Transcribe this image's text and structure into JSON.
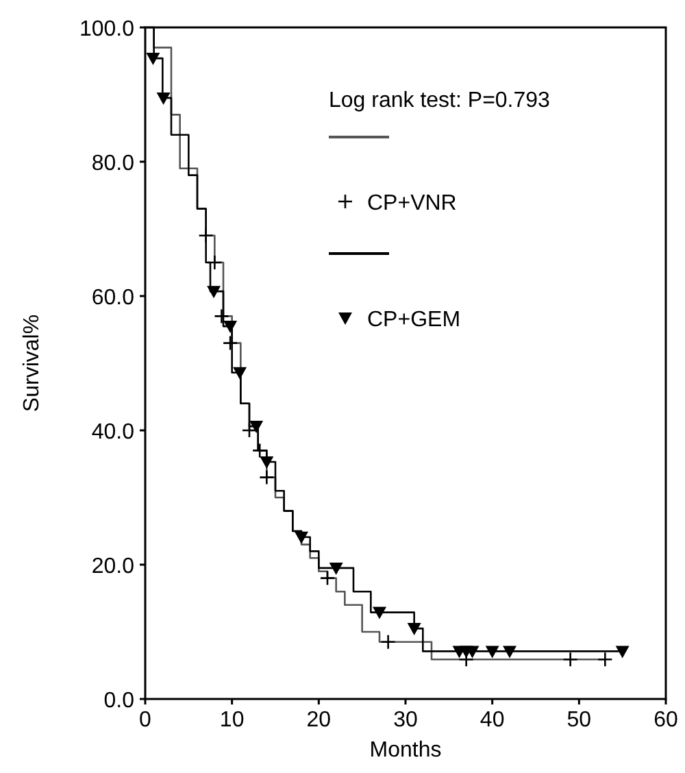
{
  "chart_data": {
    "type": "step",
    "xlabel": "Months",
    "ylabel": "Survival%",
    "annotations": [
      "Log rank test: P=0.793"
    ],
    "xlim": [
      0,
      60
    ],
    "xticks": [
      0,
      10,
      20,
      30,
      40,
      50,
      60
    ],
    "ylim": [
      0,
      100
    ],
    "yticks": [
      {
        "value": 0,
        "label": "0.0"
      },
      {
        "value": 20,
        "label": "20.0"
      },
      {
        "value": 40,
        "label": "40.0"
      },
      {
        "value": 60,
        "label": "60.0"
      },
      {
        "value": 80,
        "label": "80.0"
      },
      {
        "value": 100,
        "label": "100.0"
      }
    ],
    "grid": false,
    "legend": "top right",
    "series": [
      {
        "color": "#555555",
        "marker": "none",
        "x": [
          0,
          1,
          3,
          4,
          6,
          7,
          8,
          9,
          10,
          11,
          12,
          13,
          14,
          15,
          16,
          17,
          18,
          19,
          20,
          21,
          22,
          23,
          25,
          27,
          33,
          53
        ],
        "values": [
          100,
          97,
          87,
          79,
          73,
          69,
          65,
          57,
          53,
          44,
          40,
          37,
          33,
          30,
          28,
          25,
          23,
          21,
          19,
          18,
          16,
          14,
          10,
          8.5,
          5.9,
          5.9
        ]
      },
      {
        "type": "scatter",
        "name": "CP+VNR",
        "color": "#000000",
        "marker": "cross",
        "x": [
          7,
          8,
          8.8,
          9.8,
          12,
          13.2,
          14,
          21,
          28,
          37,
          49,
          53
        ],
        "values": [
          69,
          65,
          57,
          53,
          40,
          37,
          33,
          18,
          8.5,
          5.9,
          5.9,
          5.9
        ]
      },
      {
        "color": "#000000",
        "marker": "none",
        "x": [
          0,
          1,
          2,
          3,
          5,
          6,
          7,
          7.5,
          9,
          10,
          11,
          12,
          13,
          14,
          15,
          16,
          17,
          18,
          19,
          20,
          22,
          24,
          26,
          31,
          32,
          55
        ],
        "values": [
          100,
          95.4,
          89.5,
          84,
          78,
          73,
          65,
          60.7,
          55.5,
          48.6,
          44,
          40.6,
          37,
          35.3,
          31,
          28,
          25,
          24.1,
          22,
          19.5,
          19.5,
          16,
          12.9,
          10.5,
          7.1,
          7.1
        ]
      },
      {
        "type": "scatter",
        "name": "CP+GEM",
        "color": "#000000",
        "marker": "triangle",
        "x": [
          0.9,
          2.1,
          7.9,
          9.8,
          10.9,
          12.8,
          14,
          18,
          22,
          27,
          31,
          36.2,
          37,
          37.7,
          40,
          42,
          55
        ],
        "values": [
          95.4,
          89.5,
          60.7,
          55.5,
          48.6,
          40.6,
          35.3,
          24.1,
          19.5,
          12.9,
          10.5,
          7.1,
          7.1,
          7.1,
          7.1,
          7.1,
          7.1
        ]
      }
    ]
  }
}
